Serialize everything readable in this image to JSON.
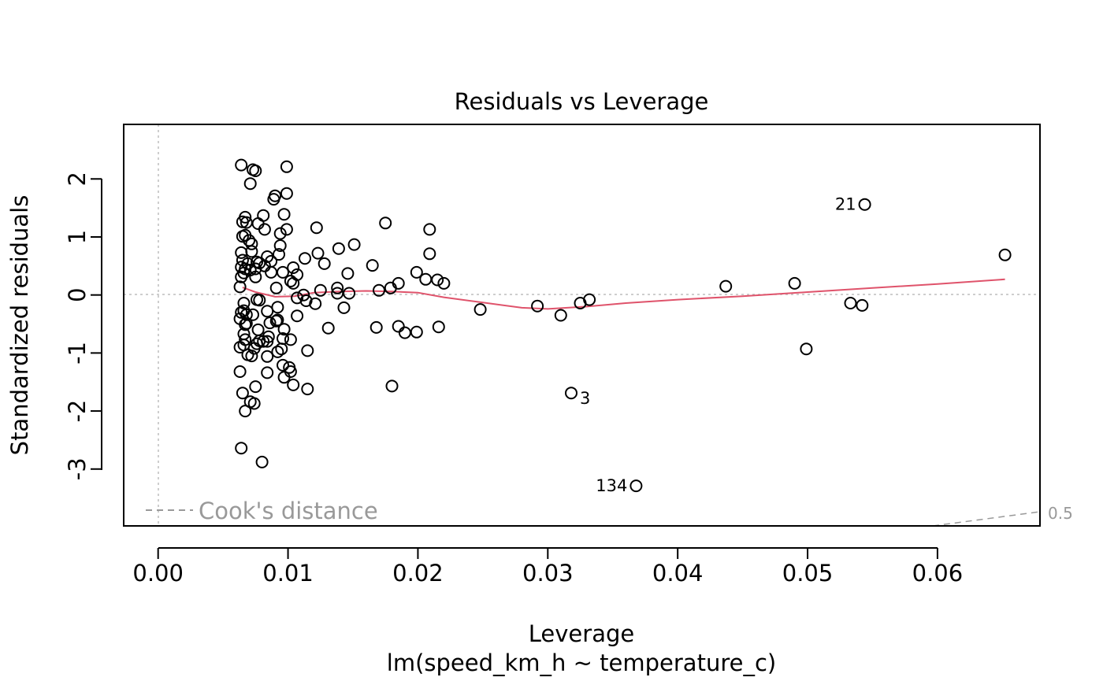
{
  "chart_data": {
    "type": "scatter",
    "title": "Residuals vs Leverage",
    "xlabel": "Leverage",
    "xsublabel": "lm(speed_km_h ~ temperature_c)",
    "ylabel": "Standardized residuals",
    "xlim": [
      -0.00265,
      0.06789
    ],
    "ylim": [
      -3.98,
      2.94
    ],
    "xticks": [
      0.0,
      0.01,
      0.02,
      0.03,
      0.04,
      0.05,
      0.06
    ],
    "xtick_labels": [
      "0.00",
      "0.01",
      "0.02",
      "0.03",
      "0.04",
      "0.05",
      "0.06"
    ],
    "yticks": [
      -3,
      -2,
      -1,
      0,
      1,
      2
    ],
    "ytick_labels": [
      "-3",
      "-2",
      "-1",
      "0",
      "1",
      "2"
    ],
    "legend": {
      "label": "Cook's distance",
      "position": "bottom-left"
    },
    "cooks_contour_label": "0.5",
    "colors": {
      "points": "#000000",
      "smooth": "#DF536B",
      "reference": "#BEBEBE",
      "cooks": "#999999"
    },
    "points": [
      [
        0.0064,
        2.24
      ],
      [
        0.0073,
        2.16
      ],
      [
        0.0075,
        2.14
      ],
      [
        0.0099,
        2.21
      ],
      [
        0.0071,
        1.92
      ],
      [
        0.009,
        1.71
      ],
      [
        0.0089,
        1.65
      ],
      [
        0.0099,
        1.75
      ],
      [
        0.0067,
        1.34
      ],
      [
        0.0065,
        1.26
      ],
      [
        0.0068,
        1.25
      ],
      [
        0.0081,
        1.37
      ],
      [
        0.0097,
        1.39
      ],
      [
        0.0077,
        1.23
      ],
      [
        0.0082,
        1.13
      ],
      [
        0.0099,
        1.13
      ],
      [
        0.0094,
        1.06
      ],
      [
        0.0065,
        1.01
      ],
      [
        0.0067,
        1.03
      ],
      [
        0.007,
        0.94
      ],
      [
        0.0072,
        0.88
      ],
      [
        0.0094,
        0.85
      ],
      [
        0.0064,
        0.73
      ],
      [
        0.0072,
        0.75
      ],
      [
        0.0084,
        0.66
      ],
      [
        0.0093,
        0.7
      ],
      [
        0.0065,
        0.6
      ],
      [
        0.0069,
        0.54
      ],
      [
        0.0076,
        0.57
      ],
      [
        0.0078,
        0.55
      ],
      [
        0.0082,
        0.5
      ],
      [
        0.0087,
        0.58
      ],
      [
        0.0064,
        0.48
      ],
      [
        0.0067,
        0.45
      ],
      [
        0.0071,
        0.43
      ],
      [
        0.0075,
        0.45
      ],
      [
        0.0066,
        0.38
      ],
      [
        0.0064,
        0.31
      ],
      [
        0.0075,
        0.31
      ],
      [
        0.0087,
        0.39
      ],
      [
        0.0096,
        0.39
      ],
      [
        0.0063,
        0.14
      ],
      [
        0.0102,
        0.24
      ],
      [
        0.0104,
        0.2
      ],
      [
        0.0104,
        0.47
      ],
      [
        0.0107,
        0.35
      ],
      [
        0.0113,
        0.63
      ],
      [
        0.0122,
        1.16
      ],
      [
        0.0123,
        0.72
      ],
      [
        0.0128,
        0.54
      ],
      [
        0.0139,
        0.8
      ],
      [
        0.0151,
        0.87
      ],
      [
        0.0146,
        0.37
      ],
      [
        0.0165,
        0.51
      ],
      [
        0.0175,
        1.24
      ],
      [
        0.0209,
        1.13
      ],
      [
        0.0209,
        0.71
      ],
      [
        0.0199,
        0.39
      ],
      [
        0.0206,
        0.27
      ],
      [
        0.0215,
        0.26
      ],
      [
        0.022,
        0.2
      ],
      [
        0.0185,
        0.2
      ],
      [
        0.0179,
        0.12
      ],
      [
        0.017,
        0.08
      ],
      [
        0.0125,
        0.08
      ],
      [
        0.0138,
        0.12
      ],
      [
        0.0138,
        0.03
      ],
      [
        0.0147,
        0.03
      ],
      [
        0.0112,
        0.0
      ],
      [
        0.0107,
        -0.05
      ],
      [
        0.0114,
        -0.1
      ],
      [
        0.0121,
        -0.15
      ],
      [
        0.0143,
        -0.22
      ],
      [
        0.0107,
        -0.36
      ],
      [
        0.0091,
        0.12
      ],
      [
        0.0076,
        -0.08
      ],
      [
        0.0078,
        -0.09
      ],
      [
        0.0066,
        -0.14
      ],
      [
        0.0066,
        -0.27
      ],
      [
        0.0064,
        -0.3
      ],
      [
        0.0063,
        -0.41
      ],
      [
        0.0068,
        -0.34
      ],
      [
        0.0073,
        -0.34
      ],
      [
        0.0067,
        -0.51
      ],
      [
        0.0068,
        -0.49
      ],
      [
        0.0077,
        -0.6
      ],
      [
        0.0084,
        -0.28
      ],
      [
        0.0092,
        -0.21
      ],
      [
        0.0086,
        -0.48
      ],
      [
        0.0091,
        -0.45
      ],
      [
        0.0092,
        -0.43
      ],
      [
        0.0097,
        -0.59
      ],
      [
        0.0085,
        -0.72
      ],
      [
        0.0084,
        -0.8
      ],
      [
        0.0066,
        -0.67
      ],
      [
        0.0067,
        -0.77
      ],
      [
        0.0063,
        -0.9
      ],
      [
        0.0066,
        -0.86
      ],
      [
        0.0069,
        -1.03
      ],
      [
        0.0072,
        -1.05
      ],
      [
        0.0074,
        -0.92
      ],
      [
        0.0076,
        -0.84
      ],
      [
        0.0078,
        -0.79
      ],
      [
        0.0081,
        -0.8
      ],
      [
        0.0092,
        -0.98
      ],
      [
        0.0095,
        -0.93
      ],
      [
        0.0096,
        -0.75
      ],
      [
        0.0102,
        -0.77
      ],
      [
        0.0084,
        -1.06
      ],
      [
        0.0096,
        -1.21
      ],
      [
        0.0101,
        -1.25
      ],
      [
        0.0102,
        -1.32
      ],
      [
        0.0097,
        -1.42
      ],
      [
        0.0084,
        -1.34
      ],
      [
        0.0063,
        -1.32
      ],
      [
        0.0075,
        -1.58
      ],
      [
        0.0104,
        -1.55
      ],
      [
        0.0115,
        -1.62
      ],
      [
        0.0115,
        -0.96
      ],
      [
        0.0131,
        -0.57
      ],
      [
        0.0168,
        -0.56
      ],
      [
        0.0185,
        -0.54
      ],
      [
        0.019,
        -0.65
      ],
      [
        0.0199,
        -0.64
      ],
      [
        0.0216,
        -0.55
      ],
      [
        0.018,
        -1.57
      ],
      [
        0.0065,
        -1.69
      ],
      [
        0.0071,
        -1.84
      ],
      [
        0.0074,
        -1.87
      ],
      [
        0.0067,
        -2.0
      ],
      [
        0.0064,
        -2.64
      ],
      [
        0.008,
        -2.88
      ],
      [
        0.0248,
        -0.25
      ],
      [
        0.0292,
        -0.19
      ],
      [
        0.031,
        -0.35
      ],
      [
        0.0325,
        -0.14
      ],
      [
        0.0332,
        -0.08
      ],
      [
        0.0318,
        -1.69
      ],
      [
        0.0368,
        -3.29
      ],
      [
        0.0437,
        0.15
      ],
      [
        0.049,
        0.2
      ],
      [
        0.0499,
        -0.93
      ],
      [
        0.0533,
        -0.14
      ],
      [
        0.0542,
        -0.18
      ],
      [
        0.0544,
        1.56
      ],
      [
        0.0652,
        0.69
      ]
    ],
    "labeled_points": [
      {
        "label": "21",
        "x": 0.0544,
        "y": 1.56,
        "side": "left"
      },
      {
        "label": "3",
        "x": 0.0318,
        "y": -1.69,
        "side": "right"
      },
      {
        "label": "134",
        "x": 0.0368,
        "y": -3.29,
        "side": "left"
      }
    ],
    "smooth_line": [
      [
        0.0065,
        0.13
      ],
      [
        0.0075,
        0.05
      ],
      [
        0.009,
        -0.03
      ],
      [
        0.0105,
        -0.02
      ],
      [
        0.012,
        0.04
      ],
      [
        0.014,
        0.06
      ],
      [
        0.016,
        0.07
      ],
      [
        0.018,
        0.06
      ],
      [
        0.02,
        0.04
      ],
      [
        0.022,
        -0.04
      ],
      [
        0.025,
        -0.13
      ],
      [
        0.028,
        -0.22
      ],
      [
        0.03,
        -0.24
      ],
      [
        0.033,
        -0.2
      ],
      [
        0.036,
        -0.14
      ],
      [
        0.04,
        -0.08
      ],
      [
        0.045,
        -0.02
      ],
      [
        0.05,
        0.05
      ],
      [
        0.055,
        0.12
      ],
      [
        0.06,
        0.19
      ],
      [
        0.0652,
        0.27
      ]
    ]
  }
}
